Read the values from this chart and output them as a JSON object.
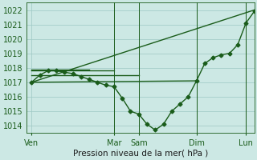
{
  "title": "",
  "xlabel": "Pression niveau de la mer( hPa )",
  "ylabel": "",
  "background_color": "#cce8e4",
  "grid_color": "#9ec8c4",
  "line_color": "#1a5c1a",
  "ylim": [
    1013.5,
    1022.5
  ],
  "yticks": [
    1014,
    1015,
    1016,
    1017,
    1018,
    1019,
    1020,
    1021,
    1022
  ],
  "xtick_labels": [
    "Ven",
    "Mar",
    "Sam",
    "Dim",
    "Lun"
  ],
  "xtick_pos": [
    0,
    5,
    6.5,
    10,
    13
  ],
  "xlim": [
    -0.3,
    13.5
  ],
  "vlines_x": [
    5,
    6.5,
    10,
    13
  ],
  "lines": [
    {
      "x": [
        0,
        0.5,
        1.0,
        1.5,
        2.0,
        2.5,
        3.0,
        3.5,
        4.0,
        4.5,
        5.0,
        5.5,
        6.0,
        6.5,
        7.0,
        7.5,
        8.0,
        8.5,
        9.0,
        9.5,
        10.0,
        10.5,
        11.0,
        11.5,
        12.0,
        12.5,
        13.0,
        13.5
      ],
      "y": [
        1017.0,
        1017.5,
        1017.8,
        1017.8,
        1017.7,
        1017.6,
        1017.4,
        1017.2,
        1017.0,
        1016.8,
        1016.7,
        1015.9,
        1015.0,
        1014.8,
        1014.1,
        1013.7,
        1014.1,
        1015.0,
        1015.5,
        1016.0,
        1017.1,
        1018.3,
        1018.7,
        1018.9,
        1019.0,
        1019.6,
        1021.1,
        1021.9
      ],
      "marker": "D",
      "markersize": 2.5,
      "linewidth": 1.0
    },
    {
      "x": [
        0,
        13.5
      ],
      "y": [
        1017.0,
        1022.0
      ],
      "marker": null,
      "markersize": 0,
      "linewidth": 1.0
    },
    {
      "x": [
        0,
        10.0
      ],
      "y": [
        1017.0,
        1017.1
      ],
      "marker": null,
      "markersize": 0,
      "linewidth": 1.0
    },
    {
      "x": [
        0,
        6.5
      ],
      "y": [
        1017.5,
        1017.5
      ],
      "marker": null,
      "markersize": 0,
      "linewidth": 1.0
    },
    {
      "x": [
        0,
        5.0
      ],
      "y": [
        1017.8,
        1017.8
      ],
      "marker": null,
      "markersize": 0,
      "linewidth": 1.0
    },
    {
      "x": [
        0,
        3.5
      ],
      "y": [
        1017.9,
        1017.9
      ],
      "marker": null,
      "markersize": 0,
      "linewidth": 1.0
    }
  ]
}
